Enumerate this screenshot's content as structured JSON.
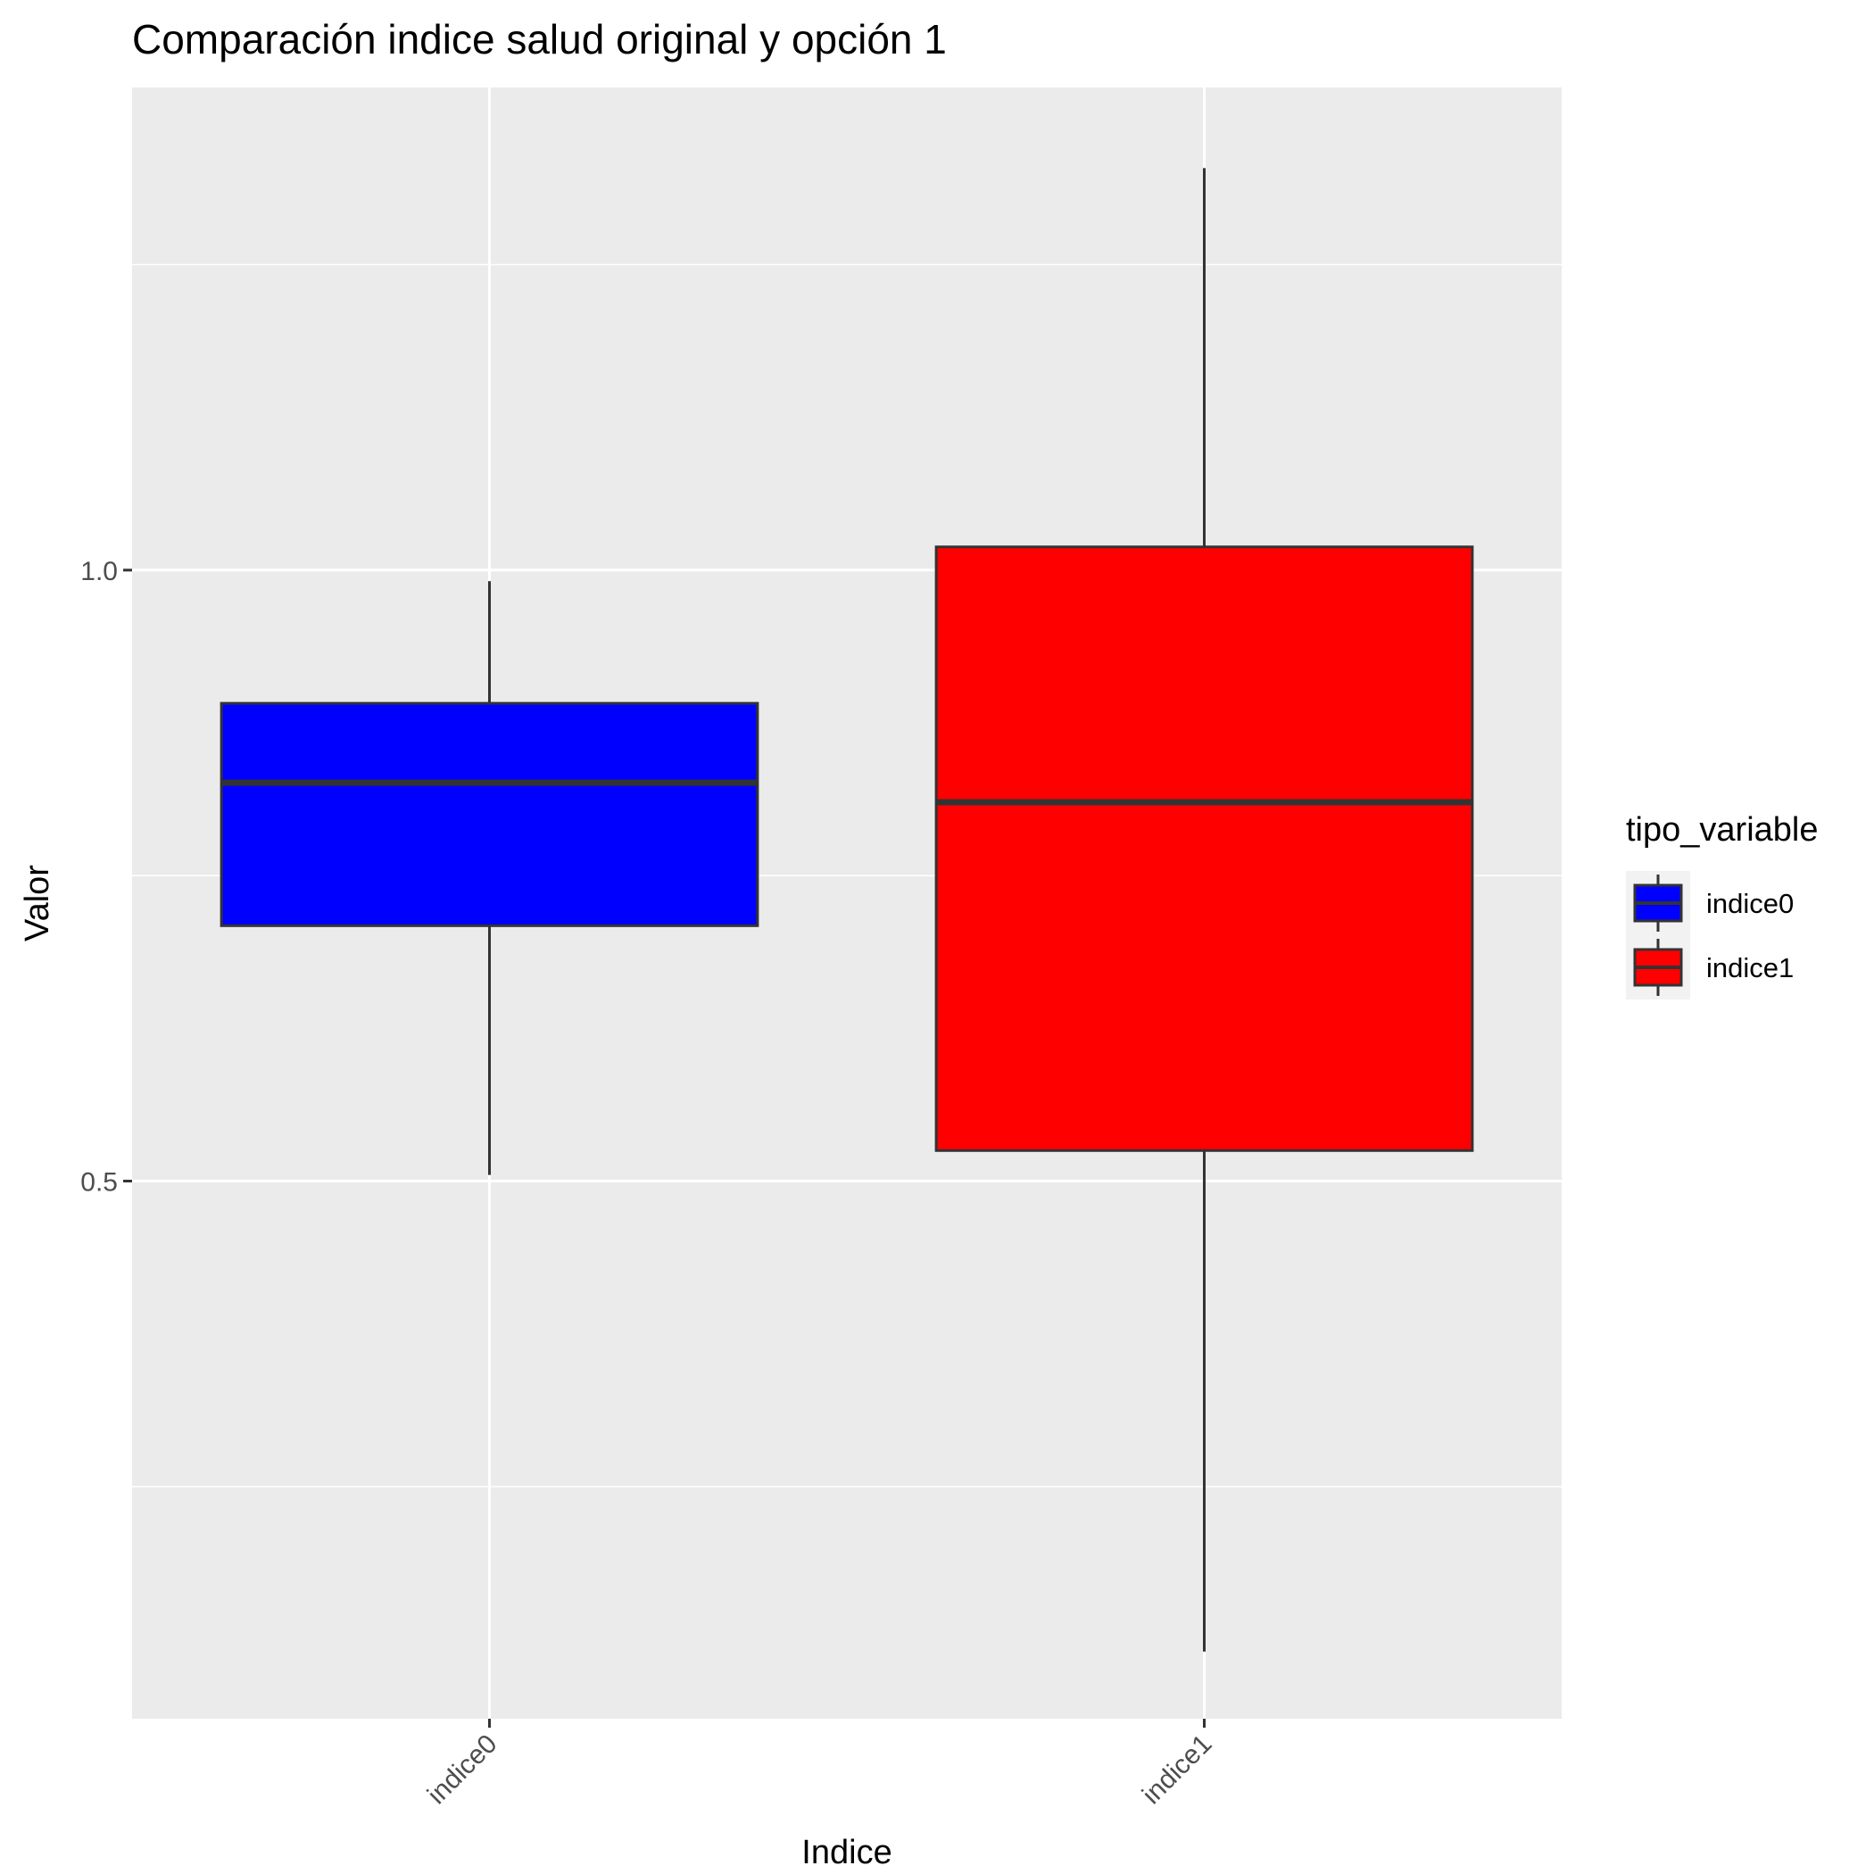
{
  "chart_data": {
    "type": "boxplot",
    "title": "Comparación indice salud original y opción 1",
    "xlabel": "Indice",
    "ylabel": "Valor",
    "ylim": [
      0.06,
      1.395
    ],
    "yticks": [
      0.5,
      1.0
    ],
    "yticklabels": [
      "0.5",
      "1.0"
    ],
    "y_minor_gridlines": [
      0.25,
      0.75,
      1.25
    ],
    "grid": true,
    "legend": {
      "title": "tipo_variable",
      "position": "right",
      "entries": [
        "indice0",
        "indice1"
      ]
    },
    "categories": [
      "indice0",
      "indice1"
    ],
    "series": [
      {
        "name": "indice0",
        "color": "#0000ff",
        "min": 0.505,
        "q1": 0.709,
        "median": 0.826,
        "q3": 0.891,
        "max": 0.991
      },
      {
        "name": "indice1",
        "color": "#ff0000",
        "min": 0.115,
        "q1": 0.525,
        "median": 0.81,
        "q3": 1.019,
        "max": 1.329
      }
    ]
  },
  "colors": {
    "panel": "#ebebeb",
    "grid": "#ffffff",
    "box_outline": "#333333",
    "axis_text": "#4d4d4d",
    "legend_key_bg": "#f2f2f2"
  }
}
